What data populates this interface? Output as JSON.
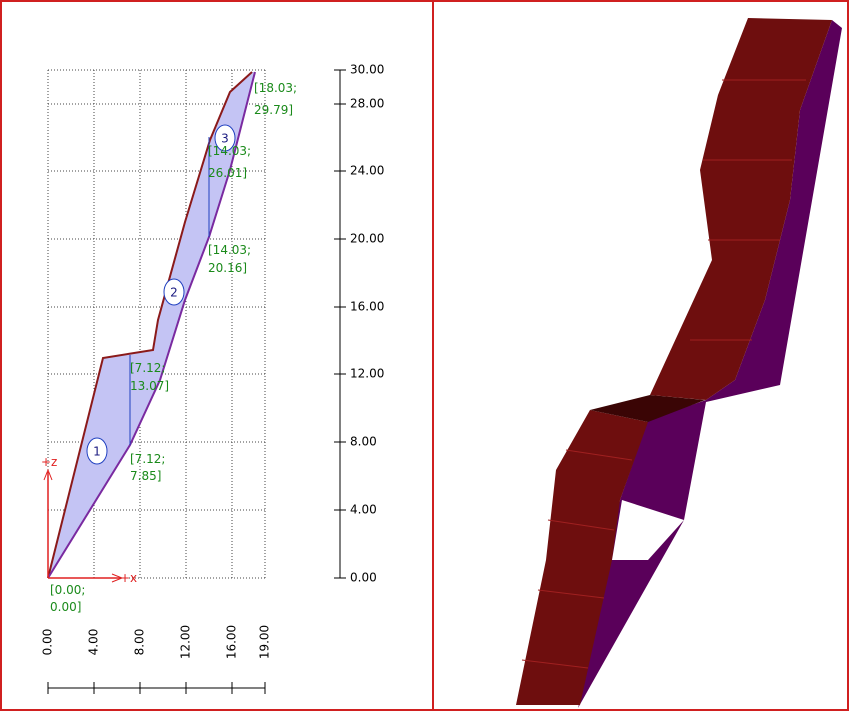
{
  "z_axis": {
    "labels": [
      "30.00",
      "28.00",
      "24.00",
      "20.00",
      "16.00",
      "12.00",
      "8.00",
      "4.00",
      "0.00"
    ]
  },
  "x_axis": {
    "labels": [
      "0.00",
      "4.00",
      "8.00",
      "12.00",
      "16.00",
      "19.00"
    ]
  },
  "axes": {
    "x": "+x",
    "z": "+z"
  },
  "points": [
    {
      "line1": "[0.00;",
      "line2": "0.00]"
    },
    {
      "line1": "[7.12;",
      "line2": "7.85]"
    },
    {
      "line1": "[7.12;",
      "line2": "13.07]"
    },
    {
      "line1": "[14.03;",
      "line2": "20.16]"
    },
    {
      "line1": "[14.03;",
      "line2": "26.01]"
    },
    {
      "line1": "[18.03;",
      "line2": "29.79]"
    }
  ],
  "regions": [
    "1",
    "2",
    "3"
  ]
}
